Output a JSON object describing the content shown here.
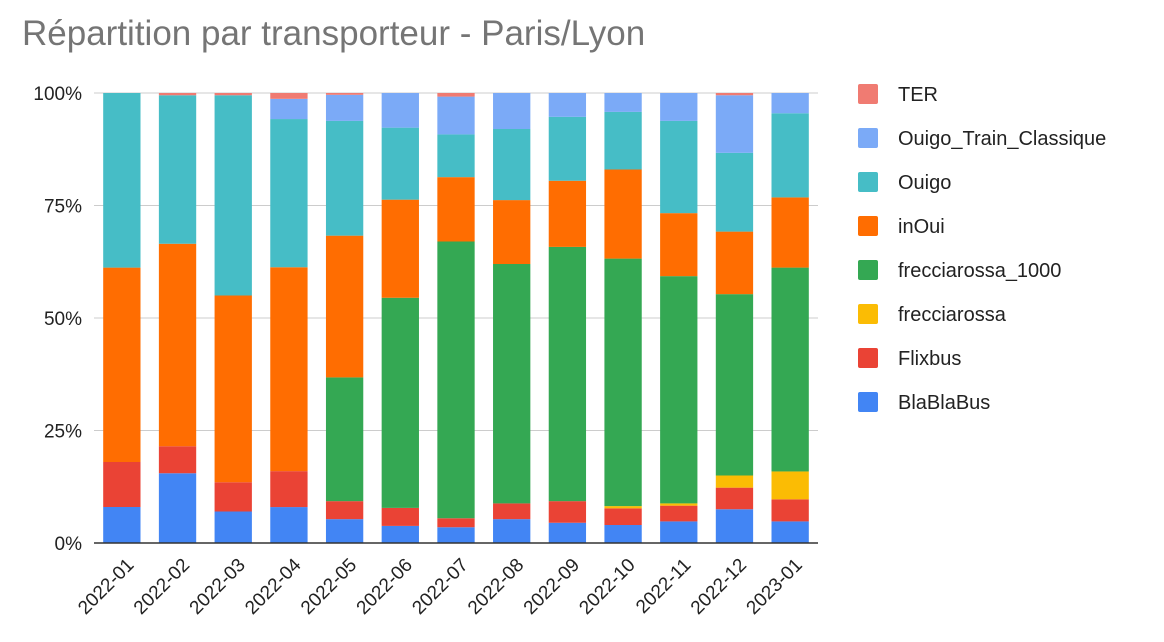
{
  "chart_data": {
    "type": "bar",
    "stacked": "100%",
    "title": "Répartition par transporteur - Paris/Lyon",
    "xlabel": "",
    "ylabel": "",
    "ylim": [
      0,
      100
    ],
    "y_ticks": [
      "0%",
      "25%",
      "50%",
      "75%",
      "100%"
    ],
    "grid": true,
    "legend_position": "right",
    "categories": [
      "2022-01",
      "2022-02",
      "2022-03",
      "2022-04",
      "2022-05",
      "2022-06",
      "2022-07",
      "2022-08",
      "2022-09",
      "2022-10",
      "2022-11",
      "2022-12",
      "2023-01"
    ],
    "series": [
      {
        "name": "BlaBlaBus",
        "color": "#4285F4",
        "values": [
          8,
          15.5,
          7,
          8,
          5.3,
          3.8,
          3.5,
          5.3,
          4.5,
          4,
          4.8,
          7.5,
          4.8
        ]
      },
      {
        "name": "Flixbus",
        "color": "#EA4335",
        "values": [
          10,
          6,
          6.5,
          8,
          4,
          4,
          2,
          3.5,
          4.8,
          3.7,
          3.5,
          4.8,
          4.9
        ]
      },
      {
        "name": "frecciarossa",
        "color": "#FBBC04",
        "values": [
          0,
          0,
          0,
          0,
          0,
          0,
          0,
          0,
          0,
          0.5,
          0.5,
          2.7,
          6.2
        ]
      },
      {
        "name": "frecciarossa_1000",
        "color": "#34A853",
        "values": [
          0,
          0,
          0,
          0,
          27.5,
          46.7,
          61.5,
          53.2,
          56.5,
          55,
          50.5,
          40.3,
          45.3
        ]
      },
      {
        "name": "inOui",
        "color": "#FF6D01",
        "values": [
          43.2,
          45,
          41.5,
          45.4,
          31.5,
          21.8,
          14.3,
          14.2,
          14.7,
          19.8,
          14,
          13.9,
          15.6
        ]
      },
      {
        "name": "Ouigo",
        "color": "#46BDC6",
        "values": [
          38.8,
          33,
          44.5,
          33,
          25.5,
          16,
          9.5,
          15.8,
          14.2,
          12.8,
          20.5,
          17.5,
          18.7
        ]
      },
      {
        "name": "Ouigo_Train_Classique",
        "color": "#7BAAF7",
        "values": [
          0,
          0,
          0,
          4.5,
          5.8,
          7.7,
          8.4,
          8,
          5.3,
          4.2,
          6.2,
          12.8,
          4.5
        ]
      },
      {
        "name": "TER",
        "color": "#F07B72",
        "values": [
          0,
          0.5,
          0.5,
          1.3,
          0.4,
          0,
          0.8,
          0,
          0,
          0,
          0,
          0.5,
          0
        ]
      }
    ]
  }
}
